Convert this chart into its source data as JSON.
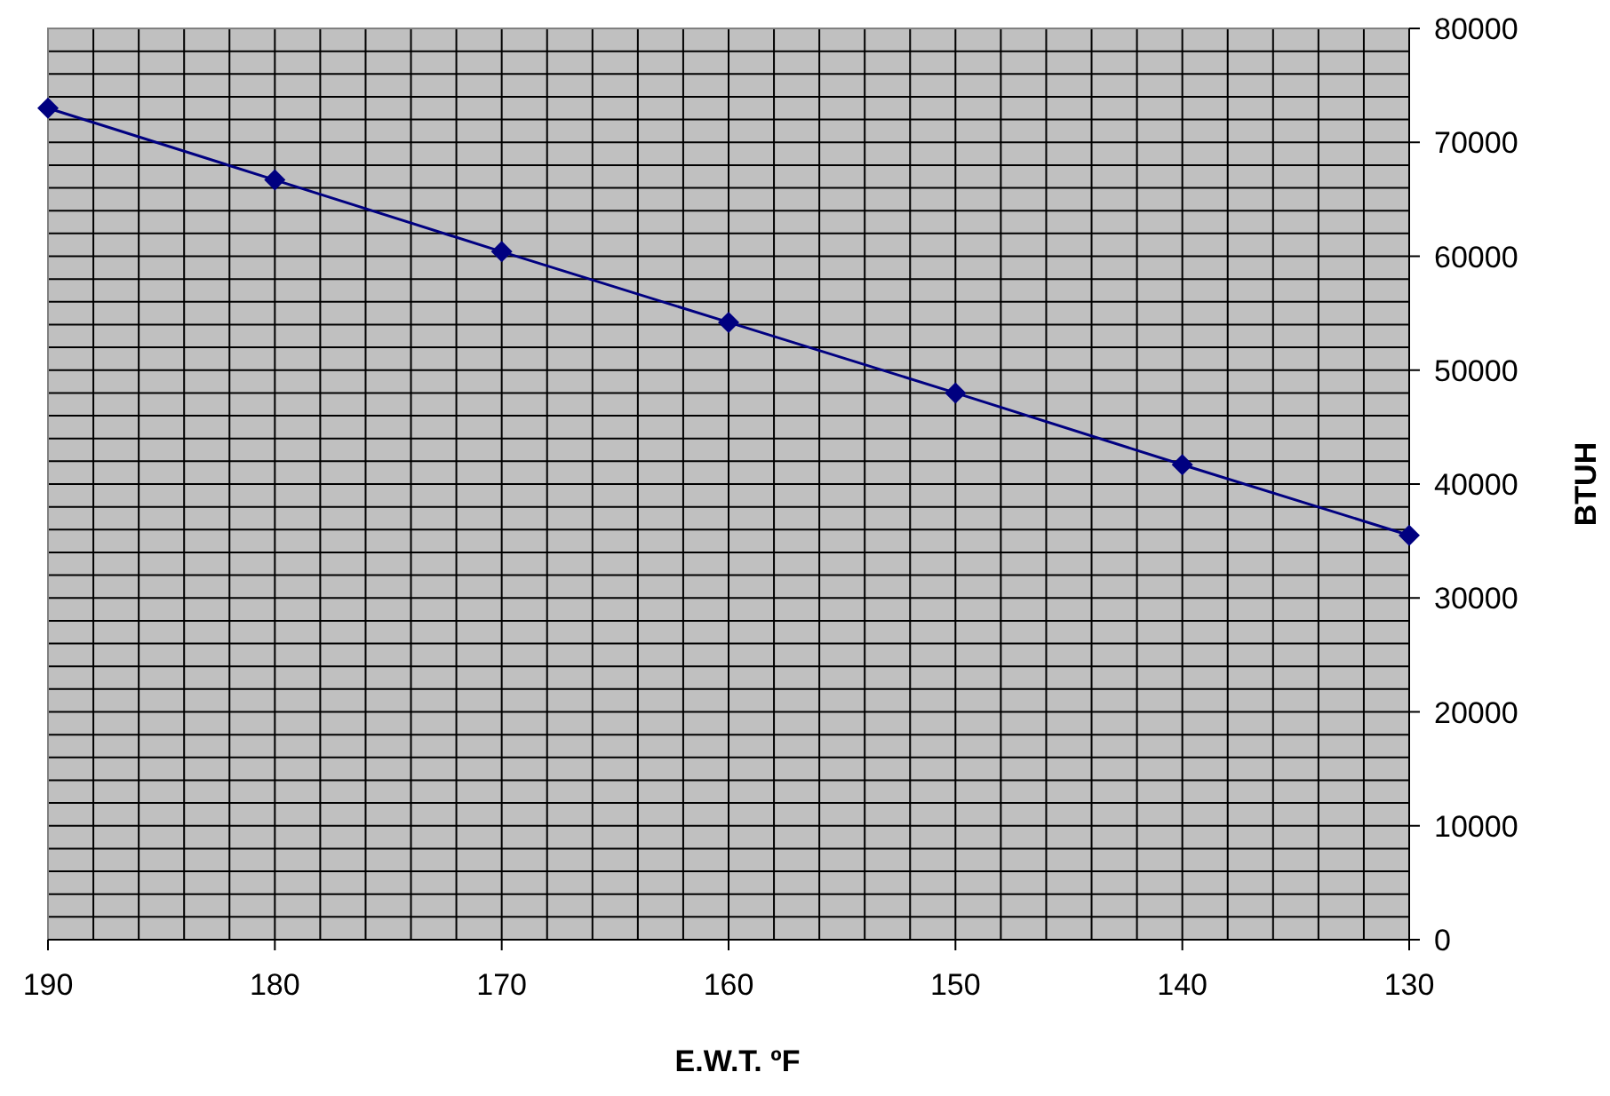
{
  "chart_data": {
    "type": "line",
    "xlabel": "E.W.T. ºF",
    "ylabel": "BTUH",
    "x": [
      190,
      180,
      170,
      160,
      150,
      140,
      130
    ],
    "series": [
      {
        "color": "#000080",
        "values": [
          73000,
          66700,
          60400,
          54200,
          48000,
          41700,
          35500
        ]
      }
    ],
    "xlim": [
      190,
      130
    ],
    "xticks": [
      190,
      {
        "value": 188,
        "label": null
      },
      {
        "value": 186,
        "label": null
      },
      {
        "value": 184,
        "label": null
      },
      {
        "value": 182,
        "label": null
      },
      180,
      {
        "value": 178,
        "label": null
      },
      {
        "value": 176,
        "label": null
      },
      {
        "value": 174,
        "label": null
      },
      {
        "value": 172,
        "label": null
      },
      170,
      {
        "value": 168,
        "label": null
      },
      {
        "value": 166,
        "label": null
      },
      {
        "value": 164,
        "label": null
      },
      {
        "value": 162,
        "label": null
      },
      160,
      {
        "value": 158,
        "label": null
      },
      {
        "value": 156,
        "label": null
      },
      {
        "value": 154,
        "label": null
      },
      {
        "value": 152,
        "label": null
      },
      150,
      {
        "value": 148,
        "label": null
      },
      {
        "value": 146,
        "label": null
      },
      {
        "value": 144,
        "label": null
      },
      {
        "value": 142,
        "label": null
      },
      140,
      {
        "value": 138,
        "label": null
      },
      {
        "value": 136,
        "label": null
      },
      {
        "value": 134,
        "label": null
      },
      {
        "value": 132,
        "label": null
      },
      130
    ],
    "ylim": [
      0,
      80000
    ],
    "yticks": [
      0,
      {
        "value": 2000,
        "label": null
      },
      {
        "value": 4000,
        "label": null
      },
      {
        "value": 6000,
        "label": null
      },
      {
        "value": 8000,
        "label": null
      },
      10000,
      {
        "value": 12000,
        "label": null
      },
      {
        "value": 14000,
        "label": null
      },
      {
        "value": 16000,
        "label": null
      },
      {
        "value": 18000,
        "label": null
      },
      20000,
      {
        "value": 22000,
        "label": null
      },
      {
        "value": 24000,
        "label": null
      },
      {
        "value": 26000,
        "label": null
      },
      {
        "value": 28000,
        "label": null
      },
      30000,
      {
        "value": 32000,
        "label": null
      },
      {
        "value": 34000,
        "label": null
      },
      {
        "value": 36000,
        "label": null
      },
      {
        "value": 38000,
        "label": null
      },
      40000,
      {
        "value": 42000,
        "label": null
      },
      {
        "value": 44000,
        "label": null
      },
      {
        "value": 46000,
        "label": null
      },
      {
        "value": 48000,
        "label": null
      },
      50000,
      {
        "value": 52000,
        "label": null
      },
      {
        "value": 54000,
        "label": null
      },
      {
        "value": 56000,
        "label": null
      },
      {
        "value": 58000,
        "label": null
      },
      60000,
      {
        "value": 62000,
        "label": null
      },
      {
        "value": 64000,
        "label": null
      },
      {
        "value": 66000,
        "label": null
      },
      {
        "value": 68000,
        "label": null
      },
      70000,
      {
        "value": 72000,
        "label": null
      },
      {
        "value": 74000,
        "label": null
      },
      {
        "value": 76000,
        "label": null
      },
      {
        "value": 78000,
        "label": null
      },
      80000
    ],
    "grid": true,
    "marker": "diamond",
    "line_style": "solid"
  }
}
